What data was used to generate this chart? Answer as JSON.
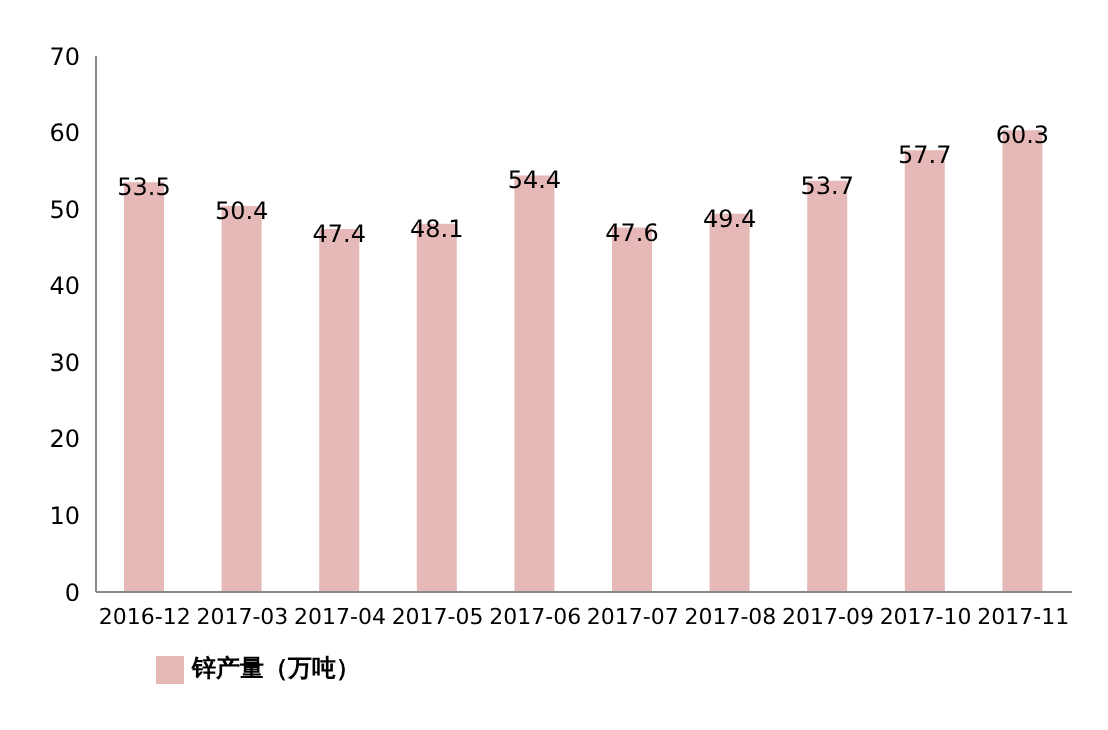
{
  "chart_data": {
    "type": "bar",
    "categories": [
      "2016-12",
      "2017-03",
      "2017-04",
      "2017-05",
      "2017-06",
      "2017-07",
      "2017-08",
      "2017-09",
      "2017-10",
      "2017-11"
    ],
    "series": [
      {
        "name": "锌产量（万吨）",
        "color": "#e6b9b8",
        "values": [
          53.5,
          50.4,
          47.4,
          48.1,
          54.4,
          47.6,
          49.4,
          53.7,
          57.7,
          60.3
        ]
      }
    ],
    "ylim": [
      0,
      70
    ],
    "yticks": [
      0,
      10,
      20,
      30,
      40,
      50,
      60,
      70
    ],
    "grid": false,
    "legend": "bottom left",
    "data_labels": true
  }
}
